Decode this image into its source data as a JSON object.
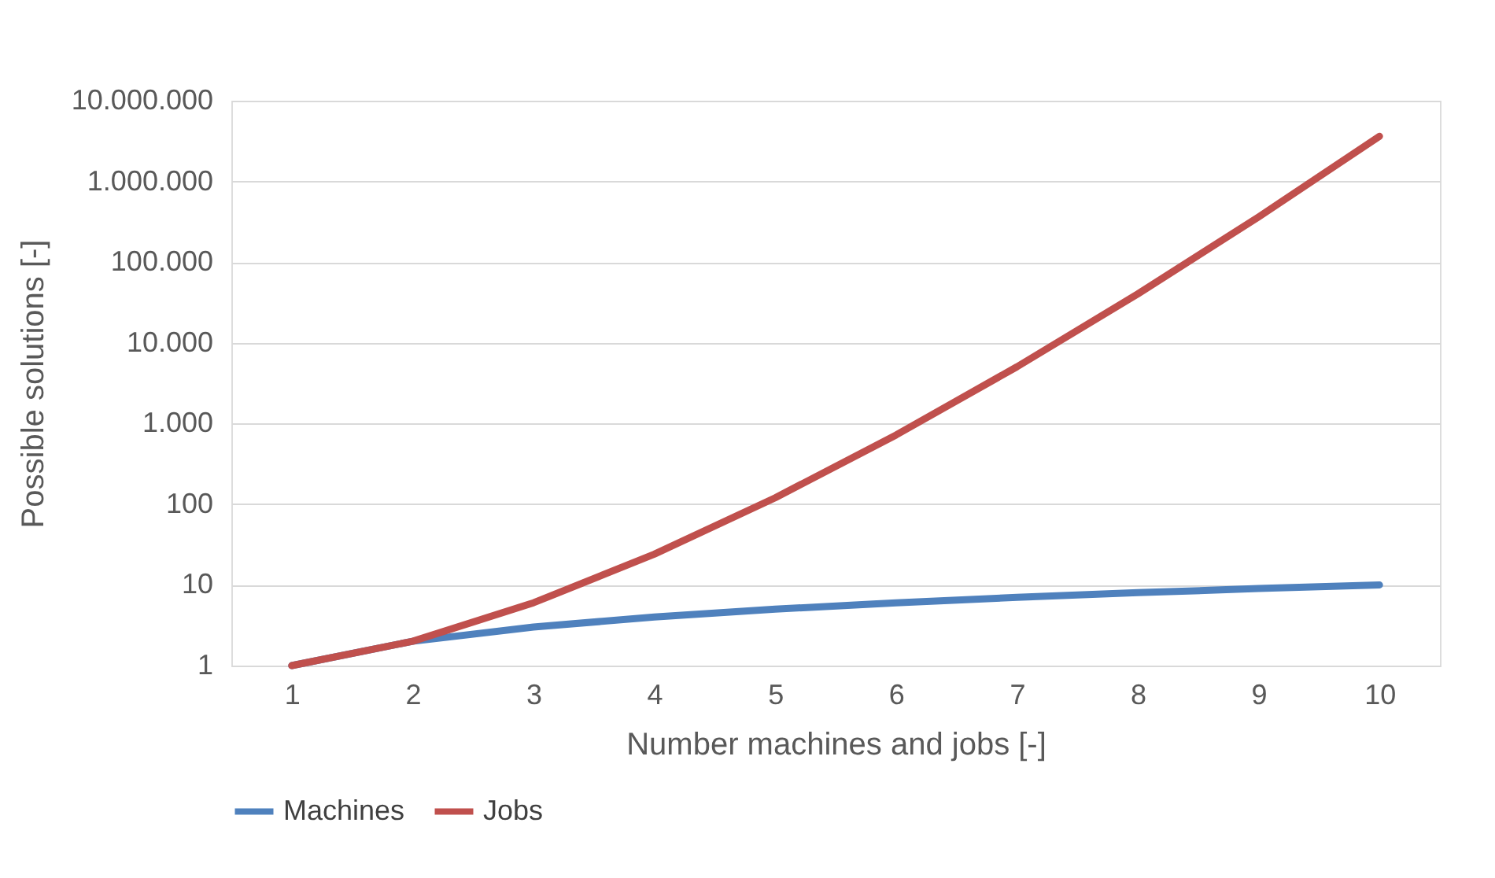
{
  "chart_data": {
    "type": "line",
    "xlabel": "Number machines and jobs [-]",
    "ylabel": "Possible solutions [-]",
    "categories": [
      "1",
      "2",
      "3",
      "4",
      "5",
      "6",
      "7",
      "8",
      "9",
      "10"
    ],
    "series": [
      {
        "name": "Machines",
        "color": "#4f81bd",
        "values": [
          1,
          2,
          3,
          4,
          5,
          6,
          7,
          8,
          9,
          10
        ]
      },
      {
        "name": "Jobs",
        "color": "#c0504d",
        "values": [
          1,
          2,
          6,
          24,
          120,
          720,
          5040,
          40320,
          362880,
          3628800
        ]
      }
    ],
    "log": "y",
    "ylim": [
      1,
      10000000
    ],
    "yticks": [
      1,
      10,
      100,
      {
        "value": 1000,
        "label": "1.000"
      },
      {
        "value": 10000,
        "label": "10.000"
      },
      {
        "value": 100000,
        "label": "100.000"
      },
      {
        "value": 1000000,
        "label": "1.000.000"
      },
      {
        "value": 10000000,
        "label": "10.000.000"
      }
    ],
    "grid": "y",
    "legend": "bottom",
    "marker": "none",
    "line_style": "solid"
  }
}
